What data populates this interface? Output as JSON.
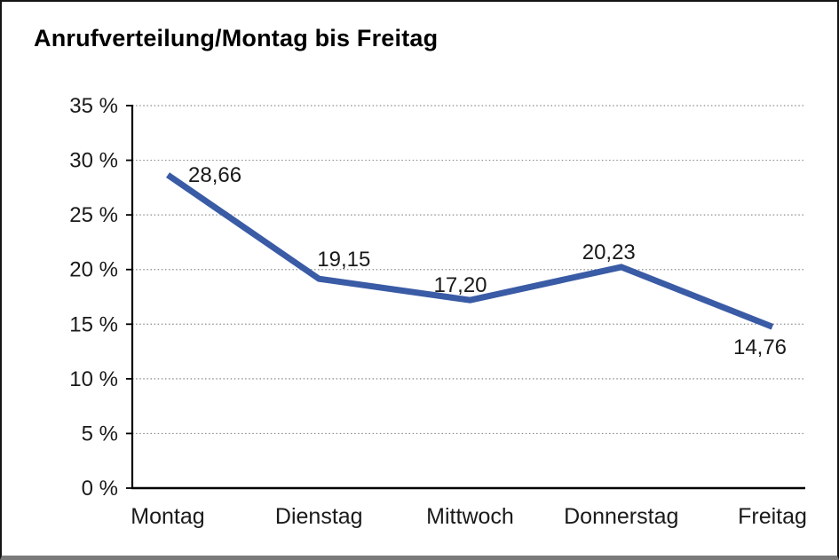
{
  "chart_data": {
    "type": "line",
    "title": "Anrufverteilung/Montag bis Freitag",
    "categories": [
      "Montag",
      "Dienstag",
      "Mittwoch",
      "Donnerstag",
      "Freitag"
    ],
    "values": [
      28.66,
      19.15,
      17.2,
      20.23,
      14.76
    ],
    "value_labels": [
      "28,66",
      "19,15",
      "17,20",
      "20,23",
      "14,76"
    ],
    "xlabel": "",
    "ylabel": "",
    "ylim": [
      0,
      35
    ],
    "ytick_step": 5,
    "ytick_labels": [
      "0 %",
      "5 %",
      "10 %",
      "15 %",
      "20 %",
      "25 %",
      "30 %",
      "35 %"
    ],
    "grid": "dotted-horizontal",
    "legend": "none",
    "colors": {
      "line": "#3A5BA5",
      "grid": "#8c8c8c",
      "axis": "#000000",
      "text": "#1a1a1a",
      "background": "#ffffff",
      "frame_border": "#141414",
      "frame_bottom": "#7a7a7a"
    }
  }
}
